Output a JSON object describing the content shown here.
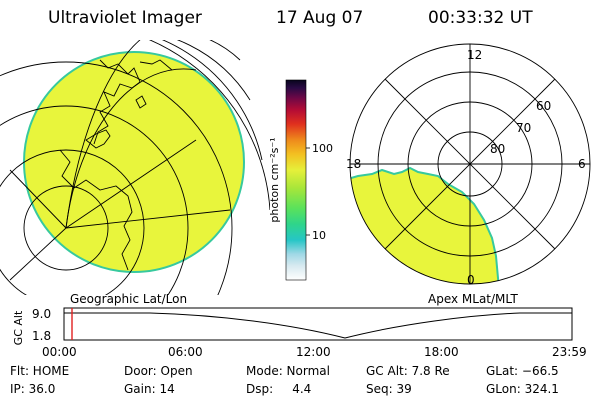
{
  "header": {
    "instrument": "Ultraviolet Imager",
    "date": "17 Aug 07",
    "time": "00:33:32 UT"
  },
  "colorbar": {
    "unit_label": "photon cm⁻²s⁻¹",
    "tick_100": "100",
    "tick_10": "10",
    "colors": [
      "#ffffff",
      "#d8eaf0",
      "#9fd8e6",
      "#26c6c6",
      "#2fd58a",
      "#5be25b",
      "#a8e63a",
      "#e6f03a",
      "#f3c021",
      "#ee8a1c",
      "#e0301e",
      "#b40c35",
      "#6e0846",
      "#2a0a44",
      "#08051d"
    ]
  },
  "left_map": {
    "caption": "Geographic Lat/Lon",
    "fill_color": "#e8f53c",
    "edge_color": "#37c99e"
  },
  "right_map": {
    "caption": "Apex MLat/MLT",
    "labels": {
      "mlt_12": "12",
      "mlt_18": "18",
      "mlt_6": "6",
      "mlt_0": "0",
      "lat_60": "60",
      "lat_70": "70",
      "lat_80": "80"
    },
    "fill_color": "#e8f53c",
    "edge_color": "#37c99e"
  },
  "orbit_plot": {
    "ylabel": "GC Alt",
    "y_ticks": [
      "9.0",
      "1.8"
    ],
    "x_ticks": [
      "00:00",
      "06:00",
      "12:00",
      "18:00",
      "23:59"
    ],
    "marker_color": "#e02020"
  },
  "info": {
    "flt": "Flt: HOME",
    "ip": "IP: 36.0",
    "door": "Door: Open",
    "gain": "Gain: 14",
    "mode": "Mode: Normal",
    "dsp": "Dsp:     4.4",
    "gc_alt": "GC Alt: 7.8 Re",
    "seq": "Seq: 39",
    "glat": "GLat: −66.5",
    "glon": "GLon: 324.1"
  }
}
